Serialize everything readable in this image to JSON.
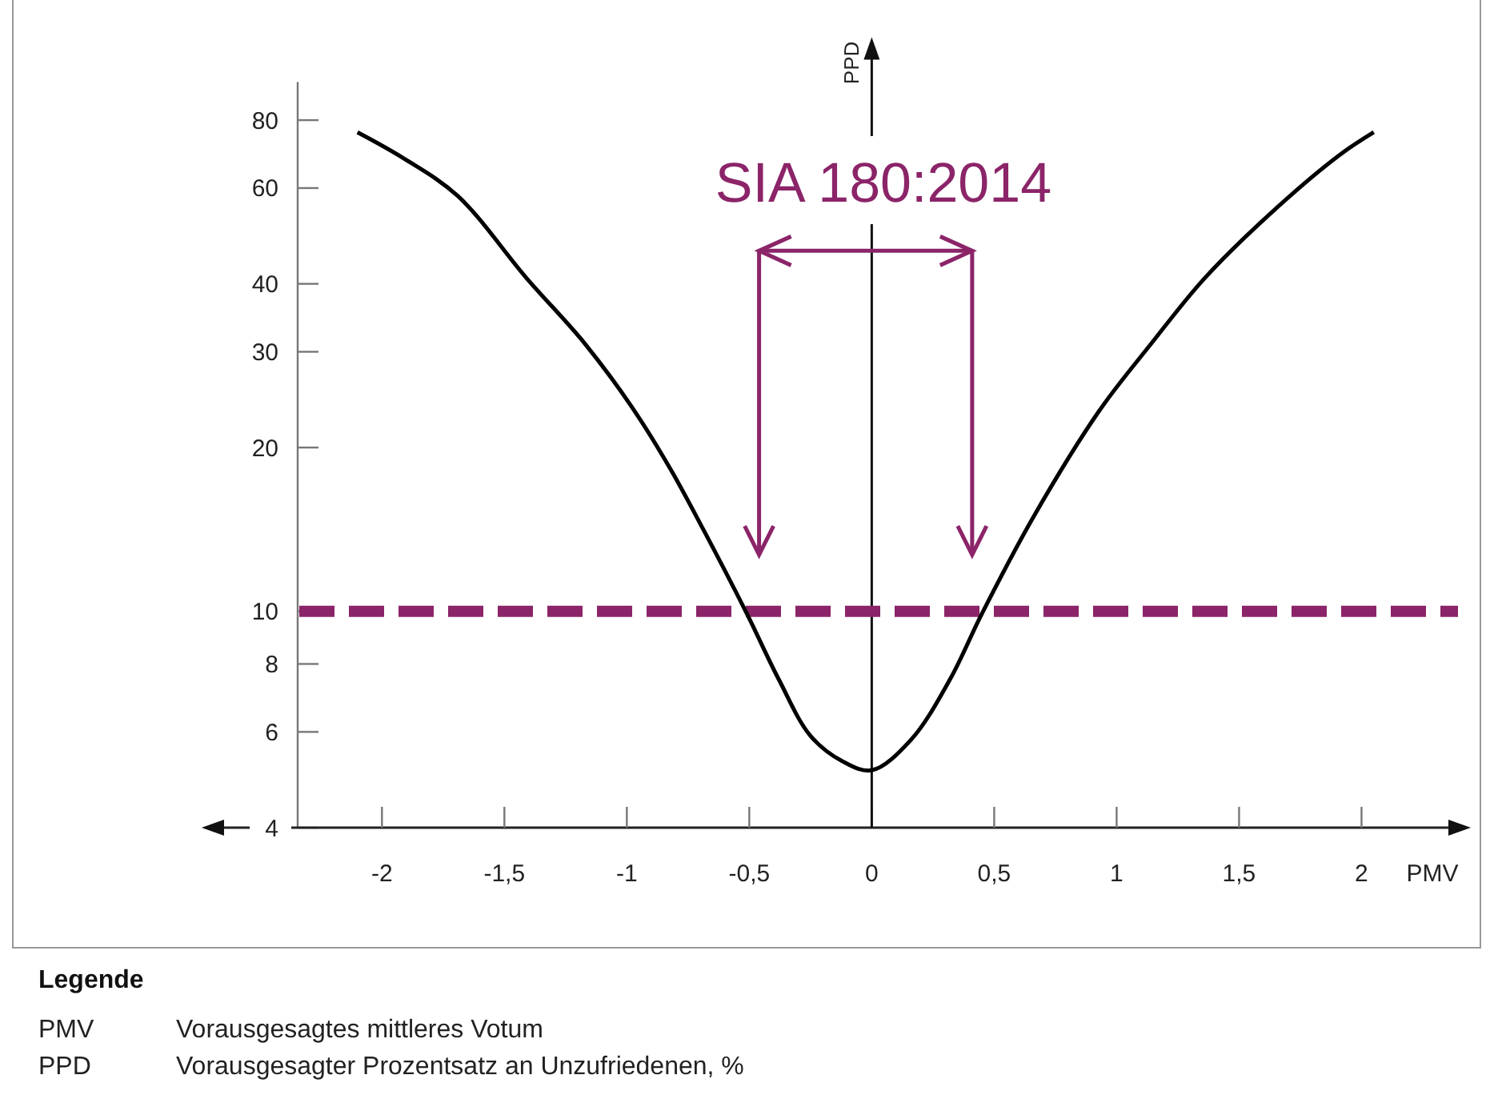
{
  "chart_data": {
    "type": "line",
    "xlabel": "PMV",
    "ylabel": "PPD",
    "log": "y",
    "xlim": [
      -2.71,
      2.42
    ],
    "ylim": [
      4,
      94
    ],
    "xticks": [
      -2,
      {
        "value": -1.5,
        "label": "-1,5"
      },
      -1,
      {
        "value": -0.5,
        "label": "-0,5"
      },
      0,
      {
        "value": 0.5,
        "label": "0,5"
      },
      1,
      {
        "value": 1.5,
        "label": "1,5"
      },
      2
    ],
    "yticks": [
      4,
      6,
      8,
      10,
      20,
      30,
      40,
      60,
      80
    ],
    "series": [
      {
        "color": "#000000",
        "line_style": "solid",
        "x": [
          -2.1,
          -1.91,
          -1.69,
          -1.41,
          -1.17,
          -0.97,
          -0.82,
          -0.69,
          -0.51,
          -0.38,
          -0.25,
          -0.12,
          0,
          0.16,
          0.32,
          0.45,
          0.66,
          0.93,
          1.14,
          1.36,
          1.65,
          1.91,
          2.05
        ],
        "values": [
          76,
          68,
          58,
          41,
          31,
          23.4,
          18.2,
          14.2,
          9.9,
          7.5,
          5.9,
          5.3,
          5.1,
          5.8,
          7.5,
          9.9,
          14.9,
          23.4,
          31,
          41,
          55,
          69,
          76
        ]
      }
    ],
    "ref_lines": [
      {
        "axis": "y",
        "value": 10,
        "color": "#8b2468",
        "line_style": "dashed"
      }
    ],
    "annotations": [
      "SIA 180:2014",
      "Legende",
      "PMV",
      "Vorausgesagtes mittleres Votum",
      "PPD",
      "Vorausgesagter Prozentsatz an Unzufriedenen, %"
    ]
  }
}
